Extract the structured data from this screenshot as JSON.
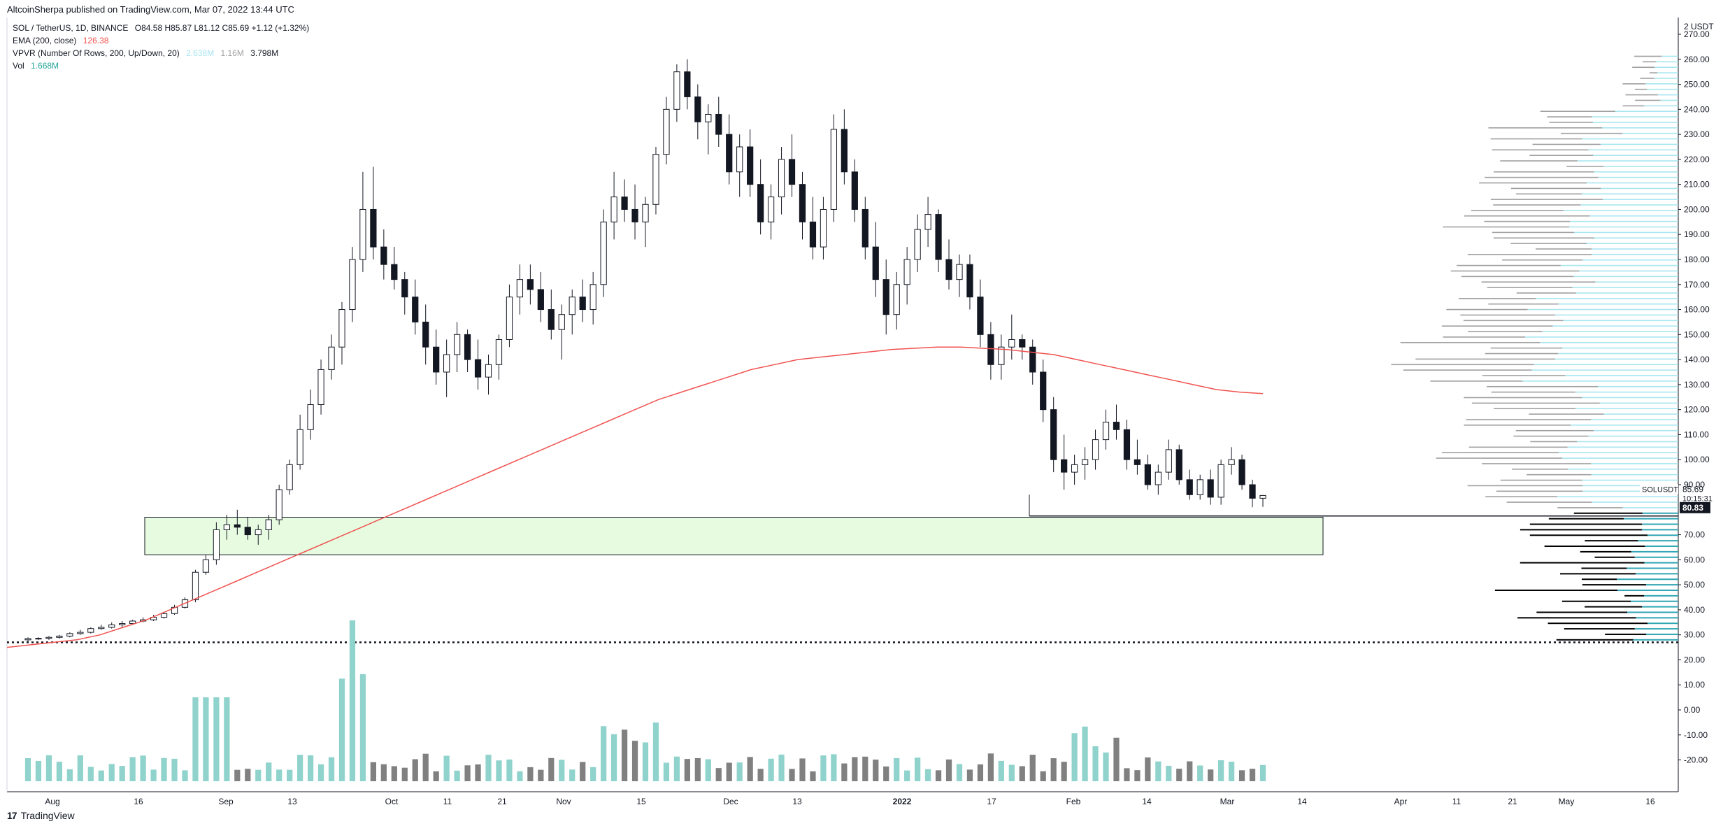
{
  "header": {
    "published_by": "AltcoinSherpa published on TradingView.com, Mar 07, 2022 13:44 UTC"
  },
  "legend": {
    "symbol": "SOL / TetherUS, 1D, BINANCE",
    "ohlc": "O84.58 H85.87 L81.12 C85.69 +1.12 (+1.32%)",
    "ema_label": "EMA (200, close)",
    "ema_value": "126.38",
    "vpvr_label": "VPVR (Number Of Rows, 200, Up/Down, 20)",
    "vpvr_up": "2.638M",
    "vpvr_down": "1.16M",
    "vpvr_total": "3.798M",
    "vol_label": "Vol",
    "vol_value": "1.668M"
  },
  "footer": {
    "brand": "TradingView",
    "logo": "17"
  },
  "colors": {
    "ema": "#f05350",
    "volume_up": "#8fd3cc",
    "volume_down": "#808080",
    "vpvr_up": "#a8e6f0",
    "vpvr_down": "#a0a0a0",
    "vpvr_up_lower": "#31a6b4",
    "vpvr_down_lower": "#000000",
    "zone_fill": "#e6fbe0"
  },
  "chart_data": {
    "type": "candlestick",
    "symbol": "SOLUSDT",
    "currency_label": "2 USDT",
    "last_price": "85.69",
    "countdown": "10:15:31",
    "level_label": "80.83",
    "y_ticks": [
      "270.00",
      "260.00",
      "250.00",
      "240.00",
      "230.00",
      "220.00",
      "210.00",
      "200.00",
      "190.00",
      "180.00",
      "170.00",
      "160.00",
      "150.00",
      "140.00",
      "130.00",
      "120.00",
      "110.00",
      "100.00",
      "90.00",
      "70.00",
      "60.00",
      "50.00",
      "40.00",
      "30.00",
      "20.00",
      "10.00",
      "0.00",
      "-10.00",
      "-20.00"
    ],
    "x_ticks": [
      "Aug",
      "16",
      "Sep",
      "13",
      "Oct",
      "11",
      "21",
      "Nov",
      "15",
      "Dec",
      "13",
      "2022",
      "17",
      "Feb",
      "14",
      "Mar",
      "14",
      "Apr",
      "11",
      "21",
      "May",
      "16"
    ],
    "ylim": [
      -20,
      270
    ],
    "candles": [
      [
        28,
        29,
        27,
        28.5
      ],
      [
        28.5,
        29,
        28,
        28.6
      ],
      [
        28.6,
        29.5,
        28,
        29
      ],
      [
        29,
        30,
        28.5,
        29.5
      ],
      [
        29.5,
        31,
        29,
        30.5
      ],
      [
        30.5,
        32,
        30,
        31
      ],
      [
        31,
        33,
        30.5,
        32.5
      ],
      [
        32.5,
        34,
        32,
        33
      ],
      [
        33,
        35,
        32.5,
        34
      ],
      [
        34,
        35.5,
        33,
        34.5
      ],
      [
        34.5,
        36,
        34,
        35.5
      ],
      [
        35.5,
        37,
        35,
        36
      ],
      [
        36,
        38,
        35.5,
        37
      ],
      [
        37,
        39,
        36.5,
        38.5
      ],
      [
        38.5,
        42,
        38,
        41
      ],
      [
        41,
        45,
        40.5,
        44
      ],
      [
        44,
        56,
        43,
        55
      ],
      [
        55,
        62,
        54,
        60
      ],
      [
        60,
        75,
        58,
        72
      ],
      [
        72,
        78,
        68,
        74
      ],
      [
        74,
        80,
        70,
        73
      ],
      [
        73,
        77,
        68,
        70
      ],
      [
        70,
        74,
        66,
        72
      ],
      [
        72,
        78,
        68,
        76
      ],
      [
        76,
        90,
        74,
        88
      ],
      [
        88,
        100,
        86,
        98
      ],
      [
        98,
        118,
        96,
        112
      ],
      [
        112,
        128,
        108,
        122
      ],
      [
        122,
        140,
        118,
        136
      ],
      [
        136,
        150,
        132,
        145
      ],
      [
        145,
        163,
        138,
        160
      ],
      [
        160,
        185,
        155,
        180
      ],
      [
        180,
        215,
        175,
        200
      ],
      [
        200,
        217,
        180,
        185
      ],
      [
        185,
        192,
        172,
        178
      ],
      [
        178,
        185,
        168,
        172
      ],
      [
        172,
        175,
        158,
        165
      ],
      [
        165,
        172,
        150,
        155
      ],
      [
        155,
        162,
        138,
        145
      ],
      [
        145,
        152,
        130,
        135
      ],
      [
        135,
        148,
        125,
        142
      ],
      [
        142,
        155,
        135,
        150
      ],
      [
        150,
        152,
        135,
        140
      ],
      [
        140,
        148,
        128,
        133
      ],
      [
        133,
        142,
        126,
        138
      ],
      [
        138,
        150,
        132,
        148
      ],
      [
        148,
        170,
        145,
        165
      ],
      [
        165,
        178,
        158,
        172
      ],
      [
        172,
        178,
        162,
        168
      ],
      [
        168,
        175,
        155,
        160
      ],
      [
        160,
        168,
        148,
        152
      ],
      [
        152,
        162,
        140,
        158
      ],
      [
        158,
        168,
        150,
        165
      ],
      [
        165,
        172,
        155,
        160
      ],
      [
        160,
        175,
        154,
        170
      ],
      [
        170,
        200,
        165,
        195
      ],
      [
        195,
        215,
        188,
        205
      ],
      [
        205,
        212,
        195,
        200
      ],
      [
        200,
        210,
        188,
        195
      ],
      [
        195,
        205,
        185,
        202
      ],
      [
        202,
        225,
        198,
        222
      ],
      [
        222,
        245,
        218,
        240
      ],
      [
        240,
        258,
        235,
        255
      ],
      [
        255,
        260,
        240,
        245
      ],
      [
        245,
        250,
        228,
        235
      ],
      [
        235,
        242,
        222,
        238
      ],
      [
        238,
        245,
        225,
        230
      ],
      [
        230,
        238,
        210,
        215
      ],
      [
        215,
        230,
        205,
        225
      ],
      [
        225,
        232,
        205,
        210
      ],
      [
        210,
        220,
        190,
        195
      ],
      [
        195,
        210,
        188,
        205
      ],
      [
        205,
        225,
        198,
        220
      ],
      [
        220,
        230,
        205,
        210
      ],
      [
        210,
        215,
        188,
        195
      ],
      [
        195,
        205,
        180,
        185
      ],
      [
        185,
        205,
        180,
        200
      ],
      [
        200,
        238,
        195,
        232
      ],
      [
        232,
        240,
        210,
        215
      ],
      [
        215,
        220,
        195,
        200
      ],
      [
        200,
        205,
        180,
        185
      ],
      [
        185,
        195,
        165,
        172
      ],
      [
        172,
        180,
        150,
        158
      ],
      [
        158,
        175,
        152,
        170
      ],
      [
        170,
        185,
        162,
        180
      ],
      [
        180,
        198,
        175,
        192
      ],
      [
        192,
        205,
        185,
        198
      ],
      [
        198,
        200,
        175,
        180
      ],
      [
        180,
        188,
        168,
        172
      ],
      [
        172,
        182,
        165,
        178
      ],
      [
        178,
        182,
        160,
        165
      ],
      [
        165,
        172,
        145,
        150
      ],
      [
        150,
        155,
        132,
        138
      ],
      [
        138,
        150,
        132,
        145
      ],
      [
        145,
        158,
        140,
        148
      ],
      [
        148,
        150,
        140,
        145
      ],
      [
        145,
        148,
        130,
        135
      ],
      [
        135,
        140,
        115,
        120
      ],
      [
        120,
        125,
        95,
        100
      ],
      [
        100,
        110,
        88,
        95
      ],
      [
        95,
        102,
        90,
        98
      ],
      [
        98,
        105,
        92,
        100
      ],
      [
        100,
        112,
        96,
        108
      ],
      [
        108,
        120,
        104,
        115
      ],
      [
        115,
        122,
        108,
        112
      ],
      [
        112,
        116,
        96,
        100
      ],
      [
        100,
        108,
        94,
        98
      ],
      [
        98,
        102,
        88,
        90
      ],
      [
        90,
        98,
        86,
        95
      ],
      [
        95,
        108,
        92,
        104
      ],
      [
        104,
        106,
        90,
        92
      ],
      [
        92,
        96,
        84,
        86
      ],
      [
        86,
        94,
        84,
        92
      ],
      [
        92,
        96,
        82,
        85
      ],
      [
        85,
        100,
        82,
        98
      ],
      [
        98,
        105,
        94,
        100
      ],
      [
        100,
        102,
        88,
        90
      ],
      [
        90,
        92,
        81,
        84.58
      ],
      [
        84.58,
        85.87,
        81.12,
        85.69
      ]
    ],
    "ema": [
      25,
      26,
      27,
      28,
      30,
      33,
      36,
      40,
      44,
      48,
      52,
      56,
      60,
      64,
      68,
      72,
      76,
      80,
      84,
      88,
      92,
      96,
      100,
      104,
      108,
      112,
      116,
      120,
      124,
      127,
      130,
      133,
      136,
      138,
      140,
      141,
      142,
      143,
      144,
      144.5,
      145,
      145,
      144.5,
      144,
      143,
      142,
      140,
      138,
      136,
      134,
      132,
      130,
      128,
      127,
      126.38
    ],
    "volume_max": 50
  }
}
